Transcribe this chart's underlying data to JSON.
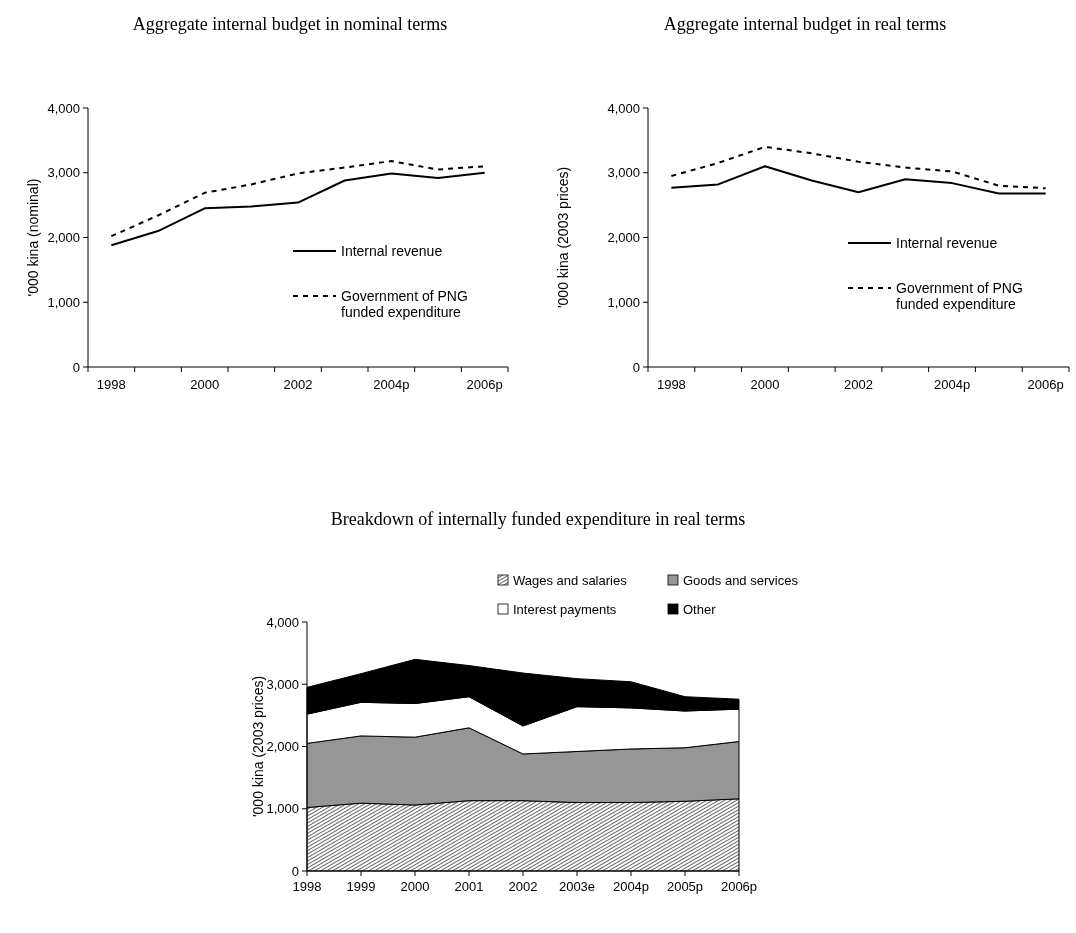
{
  "chart_data": [
    {
      "type": "line",
      "title": "Aggregate internal budget in nominal terms",
      "ylabel": "'000 kina (nominal)",
      "categories": [
        "1998",
        null,
        "2000",
        null,
        "2002",
        null,
        "2004p",
        null,
        "2006p"
      ],
      "ylim": [
        0,
        4000
      ],
      "yticks": [
        {
          "value": 0,
          "label": "0"
        },
        {
          "value": 1000,
          "label": "1,000"
        },
        {
          "value": 2000,
          "label": "2,000"
        },
        {
          "value": 3000,
          "label": "3,000"
        },
        {
          "value": 4000,
          "label": "4,000"
        }
      ],
      "legend": "right",
      "grid": false,
      "series": [
        {
          "name": "Internal revenue",
          "color": "#000000",
          "line_style": "solid",
          "values": [
            1880,
            2100,
            2450,
            2480,
            2540,
            2880,
            2990,
            2920,
            3000
          ]
        },
        {
          "name": "Government of PNG funded expenditure",
          "color": "#000000",
          "line_style": "dashed",
          "values": [
            2020,
            2340,
            2690,
            2820,
            2990,
            3080,
            3180,
            3050,
            3100
          ]
        }
      ]
    },
    {
      "type": "line",
      "title": "Aggregate internal budget in real terms",
      "ylabel": "'000 kina (2003 prices)",
      "categories": [
        "1998",
        null,
        "2000",
        null,
        "2002",
        null,
        "2004p",
        null,
        "2006p"
      ],
      "ylim": [
        0,
        4000
      ],
      "yticks": [
        {
          "value": 0,
          "label": "0"
        },
        {
          "value": 1000,
          "label": "1,000"
        },
        {
          "value": 2000,
          "label": "2,000"
        },
        {
          "value": 3000,
          "label": "3,000"
        },
        {
          "value": 4000,
          "label": "4,000"
        }
      ],
      "legend": "right",
      "grid": false,
      "series": [
        {
          "name": "Internal revenue",
          "color": "#000000",
          "line_style": "solid",
          "values": [
            2770,
            2820,
            3100,
            2880,
            2700,
            2900,
            2840,
            2680,
            2680
          ]
        },
        {
          "name": "Government of PNG funded expenditure",
          "color": "#000000",
          "line_style": "dashed",
          "values": [
            2950,
            3150,
            3400,
            3300,
            3170,
            3080,
            3020,
            2800,
            2760
          ]
        }
      ]
    },
    {
      "type": "area",
      "stacked": true,
      "title": "Breakdown of internally funded expenditure in real terms",
      "ylabel": "'000 kina (2003 prices)",
      "categories": [
        "1998",
        "1999",
        "2000",
        "2001",
        "2002",
        "2003e",
        "2004p",
        "2005p",
        "2006p"
      ],
      "ylim": [
        0,
        4000
      ],
      "yticks": [
        {
          "value": 0,
          "label": "0"
        },
        {
          "value": 1000,
          "label": "1,000"
        },
        {
          "value": 2000,
          "label": "2,000"
        },
        {
          "value": 3000,
          "label": "3,000"
        },
        {
          "value": 4000,
          "label": "4,000"
        }
      ],
      "legend": "top right",
      "grid": false,
      "series": [
        {
          "name": "Wages and salaries",
          "color": "#000000",
          "values": [
            1020,
            1090,
            1060,
            1130,
            1130,
            1100,
            1100,
            1120,
            1160
          ]
        },
        {
          "name": "Goods and services",
          "color": "#969696",
          "values": [
            1030,
            1080,
            1090,
            1170,
            750,
            820,
            860,
            860,
            920
          ]
        },
        {
          "name": "Interest payments",
          "color": "#ffffff",
          "values": [
            470,
            540,
            540,
            500,
            450,
            720,
            660,
            590,
            520
          ]
        },
        {
          "name": "Other",
          "color": "#000000",
          "values": [
            430,
            460,
            710,
            500,
            850,
            450,
            420,
            230,
            160
          ]
        }
      ]
    }
  ]
}
